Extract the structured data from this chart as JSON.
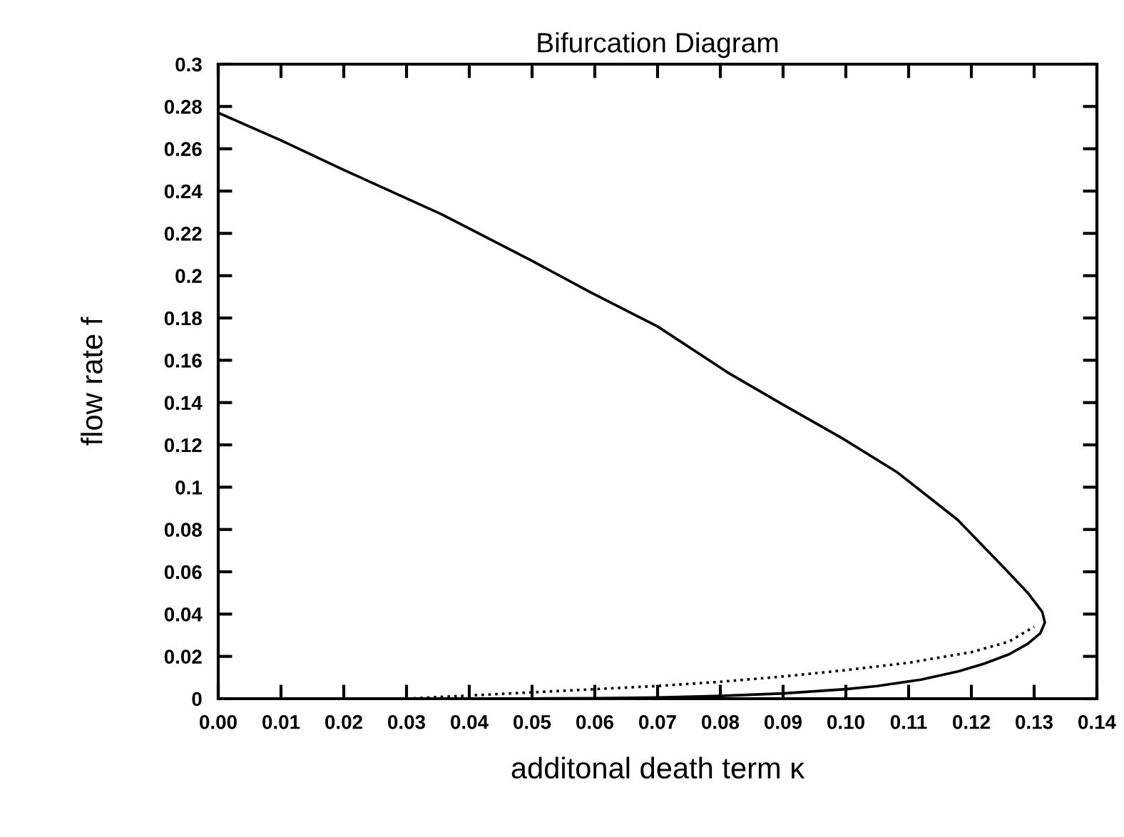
{
  "chart_data": {
    "type": "line",
    "title": "Bifurcation Diagram",
    "xlabel": "additonal death term κ",
    "ylabel": "flow rate f",
    "series": [
      {
        "color": "#000000",
        "line_style": "solid",
        "x": [
          0,
          0.01,
          0.02,
          0.0356,
          0.05,
          0.0594,
          0.07,
          0.0813,
          0.09,
          0.0995,
          0.1082,
          0.1178,
          0.1253,
          0.129,
          0.1313,
          0.1317,
          0.131,
          0.129,
          0.126,
          0.122,
          0.118,
          0.112,
          0.105,
          0.1,
          0.09,
          0.08,
          0.07,
          0.06,
          0.05,
          0.04
        ],
        "values": [
          0.277,
          0.264,
          0.25,
          0.229,
          0.207,
          0.192,
          0.176,
          0.154,
          0.139,
          0.123,
          0.107,
          0.0846,
          0.0616,
          0.05,
          0.041,
          0.036,
          0.031,
          0.026,
          0.021,
          0.0165,
          0.013,
          0.009,
          0.006,
          0.0045,
          0.0025,
          0.0013,
          0.0006,
          0.0002,
          0.0001,
          0
        ]
      },
      {
        "color": "#000000",
        "line_style": "dotted",
        "x": [
          0.03,
          0.04,
          0.05,
          0.06,
          0.07,
          0.08,
          0.09,
          0.1,
          0.11,
          0.12,
          0.126,
          0.13
        ],
        "values": [
          0,
          0.0015,
          0.003,
          0.0045,
          0.006,
          0.008,
          0.0105,
          0.0135,
          0.017,
          0.022,
          0.027,
          0.034
        ]
      }
    ],
    "xlim": [
      0,
      0.14
    ],
    "ylim": [
      0,
      0.3
    ],
    "xticks": [
      {
        "value": 0,
        "label": "0.00"
      },
      {
        "value": 0.01,
        "label": "0.01"
      },
      {
        "value": 0.02,
        "label": "0.02"
      },
      {
        "value": 0.03,
        "label": "0.03"
      },
      {
        "value": 0.04,
        "label": "0.04"
      },
      {
        "value": 0.05,
        "label": "0.05"
      },
      {
        "value": 0.06,
        "label": "0.06"
      },
      {
        "value": 0.07,
        "label": "0.07"
      },
      {
        "value": 0.08,
        "label": "0.08"
      },
      {
        "value": 0.09,
        "label": "0.09"
      },
      {
        "value": 0.1,
        "label": "0.10"
      },
      {
        "value": 0.11,
        "label": "0.11"
      },
      {
        "value": 0.12,
        "label": "0.12"
      },
      {
        "value": 0.13,
        "label": "0.13"
      },
      {
        "value": 0.14,
        "label": "0.14"
      }
    ],
    "yticks": [
      0,
      0.02,
      0.04,
      0.06,
      0.08,
      0.1,
      0.12,
      0.14,
      0.16,
      0.18,
      0.2,
      0.22,
      0.24,
      0.26,
      0.28,
      0.3
    ],
    "marker": "none"
  }
}
